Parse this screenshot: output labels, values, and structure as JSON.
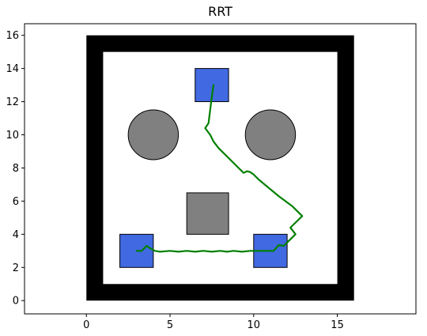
{
  "chart_data": {
    "type": "scatter",
    "title": "RRT",
    "xlabel": "",
    "ylabel": "",
    "xlim": [
      -3.7,
      19.7
    ],
    "ylim": [
      -0.8,
      16.7
    ],
    "xticks": [
      0,
      5,
      10,
      15
    ],
    "yticks": [
      0,
      2,
      4,
      6,
      8,
      10,
      12,
      14,
      16
    ],
    "grid": false,
    "walls": {
      "outer": [
        0,
        0,
        16,
        16
      ],
      "inner": [
        1,
        1,
        15,
        15
      ],
      "color": "#000000"
    },
    "obstacles": [
      {
        "shape": "circle",
        "center": [
          4,
          10
        ],
        "radius": 1.5,
        "color": "#808080"
      },
      {
        "shape": "circle",
        "center": [
          11,
          10
        ],
        "radius": 1.5,
        "color": "#808080"
      },
      {
        "shape": "rect",
        "x": 6,
        "y": 4,
        "w": 2.5,
        "h": 2.5,
        "color": "#808080"
      }
    ],
    "regions": [
      {
        "x": 6.5,
        "y": 12,
        "w": 2,
        "h": 2,
        "color": "#4169e1"
      },
      {
        "x": 2,
        "y": 2,
        "w": 2,
        "h": 2,
        "color": "#4169e1"
      },
      {
        "x": 10,
        "y": 2,
        "w": 2,
        "h": 2,
        "color": "#4169e1"
      }
    ],
    "path": {
      "color": "#008000",
      "points": [
        [
          3.0,
          3.0
        ],
        [
          3.3,
          3.0
        ],
        [
          3.6,
          3.3
        ],
        [
          3.9,
          3.1
        ],
        [
          4.1,
          3.0
        ],
        [
          4.4,
          2.95
        ],
        [
          5.0,
          3.0
        ],
        [
          5.5,
          2.95
        ],
        [
          6.0,
          3.0
        ],
        [
          6.5,
          2.95
        ],
        [
          7.0,
          3.0
        ],
        [
          7.5,
          2.95
        ],
        [
          8.0,
          3.0
        ],
        [
          8.4,
          2.95
        ],
        [
          8.8,
          3.0
        ],
        [
          9.3,
          2.95
        ],
        [
          9.8,
          3.0
        ],
        [
          10.3,
          3.0
        ],
        [
          10.8,
          3.0
        ],
        [
          11.2,
          3.0
        ],
        [
          11.5,
          3.35
        ],
        [
          11.8,
          3.3
        ],
        [
          12.1,
          3.6
        ],
        [
          12.5,
          4.0
        ],
        [
          12.2,
          4.4
        ],
        [
          12.9,
          5.1
        ],
        [
          12.3,
          5.7
        ],
        [
          11.5,
          6.3
        ],
        [
          10.9,
          6.8
        ],
        [
          10.3,
          7.3
        ],
        [
          10.0,
          7.6
        ],
        [
          9.8,
          7.75
        ],
        [
          9.6,
          7.8
        ],
        [
          9.4,
          7.7
        ],
        [
          9.1,
          8.0
        ],
        [
          8.5,
          8.6
        ],
        [
          7.9,
          9.2
        ],
        [
          7.6,
          9.6
        ],
        [
          7.4,
          10.0
        ],
        [
          7.1,
          10.4
        ],
        [
          7.3,
          10.7
        ],
        [
          7.4,
          11.5
        ],
        [
          7.5,
          12.3
        ],
        [
          7.6,
          13.0
        ]
      ]
    }
  }
}
